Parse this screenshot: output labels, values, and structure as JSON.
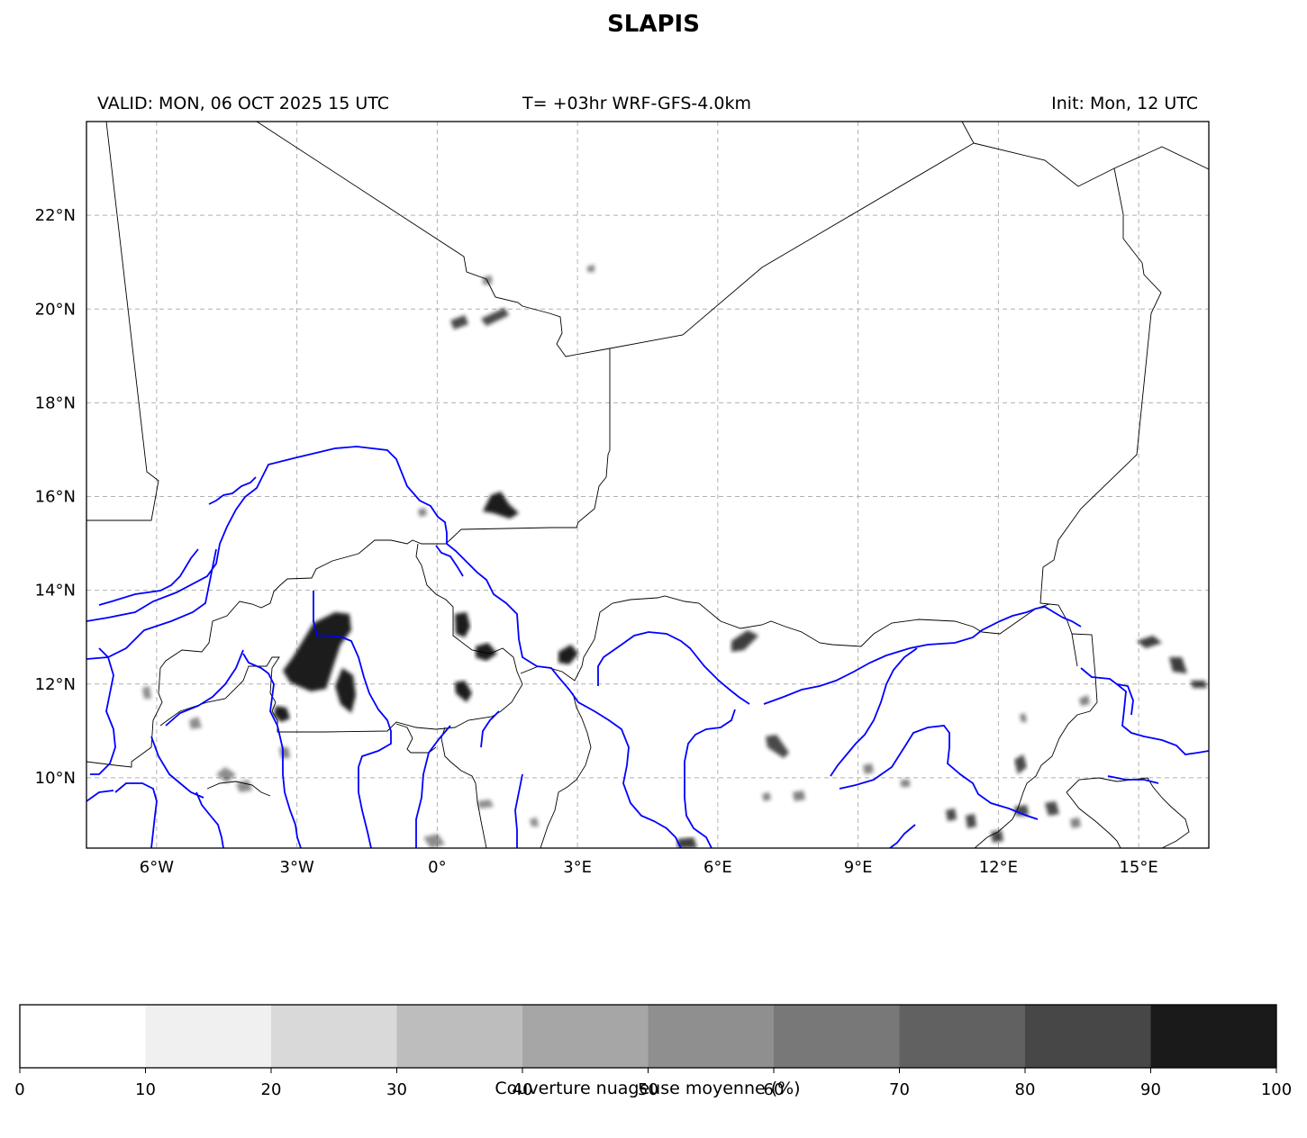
{
  "header": {
    "title": "SLAPIS",
    "valid": "VALID: MON, 06 OCT 2025 15 UTC",
    "forecast": "T= +03hr WRF-GFS-4.0km",
    "init": "Init: Mon, 12 UTC"
  },
  "map": {
    "extent": {
      "lon": [
        -7.5,
        16.5
      ],
      "lat": [
        8.5,
        24.0
      ]
    },
    "lon_ticks": [
      -6,
      -3,
      0,
      3,
      6,
      9,
      12,
      15
    ],
    "lon_labels": [
      "6°W",
      "3°W",
      "0°",
      "3°E",
      "6°E",
      "9°E",
      "12°E",
      "15°E"
    ],
    "lat_ticks": [
      10,
      12,
      14,
      16,
      18,
      20,
      22
    ],
    "lat_labels": [
      "10°N",
      "12°N",
      "14°N",
      "16°N",
      "18°N",
      "20°N",
      "22°N"
    ],
    "grid": true,
    "colors": {
      "borders": "#000000",
      "rivers": "#0000ff",
      "grid": "#b0b0b0"
    }
  },
  "colorbar": {
    "ticks": [
      "0",
      "10",
      "20",
      "30",
      "40",
      "50",
      "60",
      "70",
      "80",
      "90",
      "100"
    ],
    "colors": [
      "#ffffff",
      "#f0f0f0",
      "#d9d9d9",
      "#bdbdbd",
      "#a6a6a6",
      "#8f8f8f",
      "#787878",
      "#616161",
      "#474747",
      "#1a1a1a"
    ],
    "label": "Couverture nuageuse moyenne (%)"
  }
}
